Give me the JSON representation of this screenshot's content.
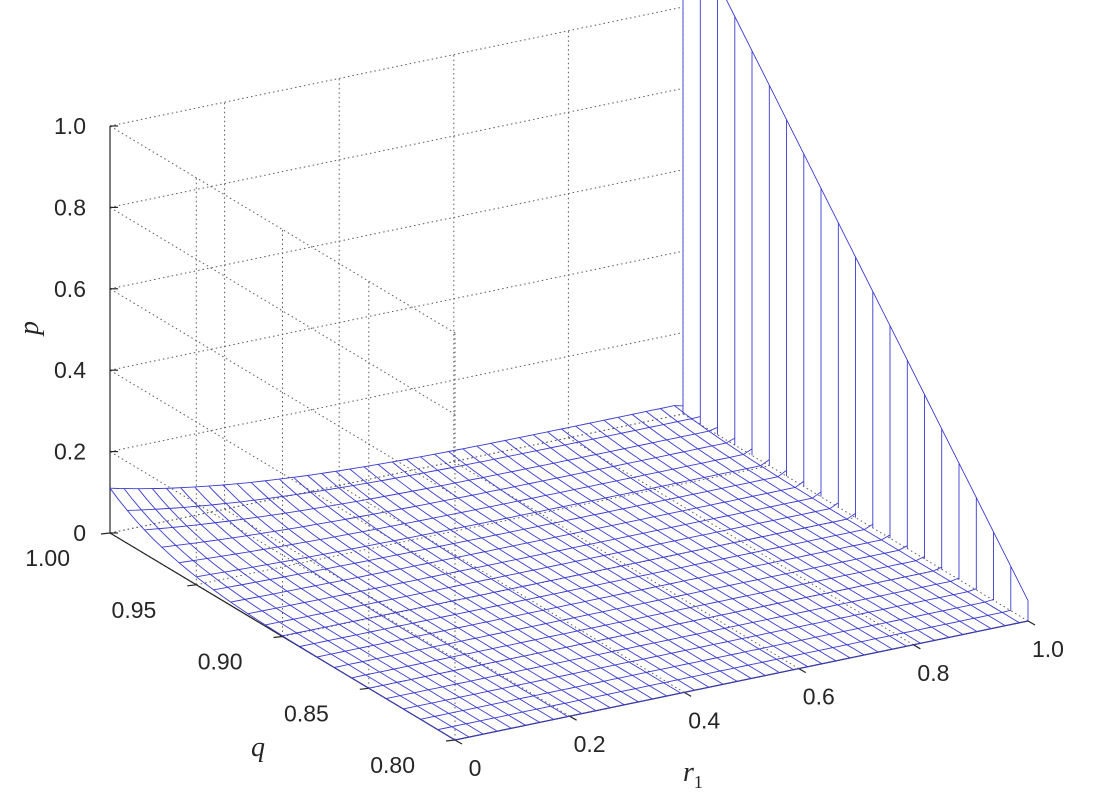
{
  "chart_data": {
    "type": "surface",
    "xlabel": "r",
    "xlabel_sub": "1",
    "ylabel": "q",
    "zlabel": "p",
    "x_ticks": [
      "0",
      "0.2",
      "0.4",
      "0.6",
      "0.8",
      "1.0"
    ],
    "y_ticks": [
      "0.80",
      "0.85",
      "0.90",
      "0.95",
      "1.00"
    ],
    "z_ticks": [
      "0",
      "0.2",
      "0.4",
      "0.6",
      "0.8",
      "1.0"
    ],
    "xlim": [
      0,
      1
    ],
    "ylim": [
      0.8,
      1.0
    ],
    "zlim": [
      0,
      1
    ],
    "grid": true,
    "color": "#3b3bd0",
    "surface_samples": {
      "r1": [
        0,
        0.2,
        0.4,
        0.6,
        0.8,
        0.98,
        1.0
      ],
      "q_1.00": [
        0.11,
        0.04,
        0.03,
        0.03,
        0.03,
        0.03,
        0.8
      ],
      "q_0.80": [
        0.0,
        0.0,
        0.0,
        0.0,
        0.0,
        0.0,
        0.0
      ]
    }
  }
}
